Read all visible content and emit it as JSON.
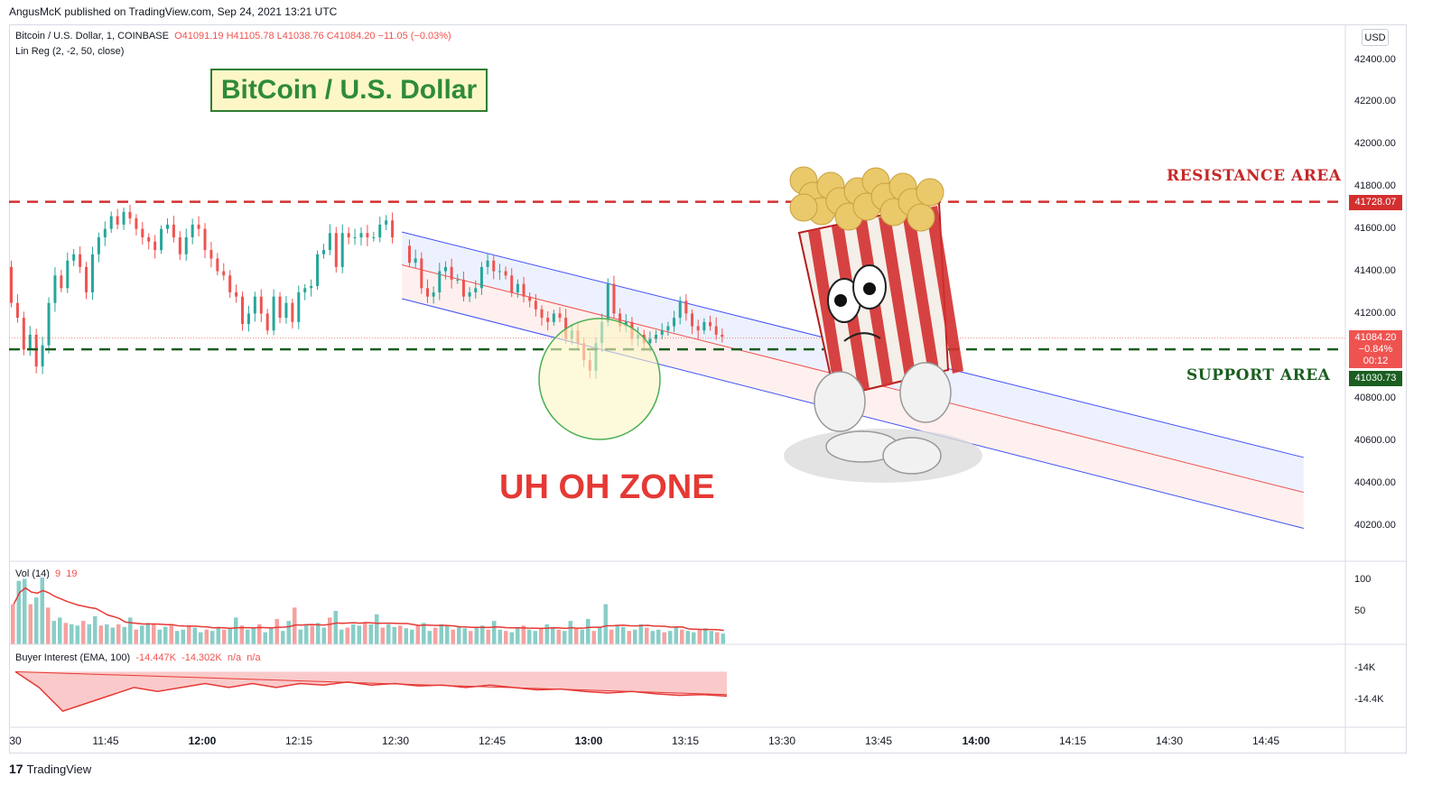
{
  "header": {
    "publish_info": "AngusMcK published on TradingView.com, Sep 24, 2021 13:21 UTC"
  },
  "symbol": {
    "name": "Bitcoin / U.S. Dollar, 1, COINBASE",
    "ohlc": "O41091.19  H41105.78  L41038.76  C41084.20  −11.05 (−0.03%)",
    "indicator": "Lin Reg (2, -2, 50, close)"
  },
  "currency": "USD",
  "annotations": {
    "title": "BitCoin / U.S. Dollar",
    "resistance": "RESISTANCE AREA",
    "support": "SUPPORT AREA",
    "zone": "UH OH ZONE"
  },
  "price_tags": {
    "resistance": "41728.07",
    "last_price": "41084.20",
    "change": "−0.84%",
    "countdown": "00:12",
    "support": "41030.73"
  },
  "volume_legend": {
    "name": "Vol (14)",
    "v1": "9",
    "v2": "19"
  },
  "buyer_interest_legend": {
    "name": "Buyer Interest (EMA, 100)",
    "v1": "-14.447K",
    "v2": "-14.302K",
    "v3": "n/a",
    "v4": "n/a"
  },
  "y_axis_main": [
    "42400.00",
    "42200.00",
    "42000.00",
    "41800.00",
    "41600.00",
    "41400.00",
    "41200.00",
    "40800.00",
    "40600.00",
    "40400.00",
    "40200.00"
  ],
  "y_axis_volume": [
    "100",
    "50"
  ],
  "y_axis_buyer": [
    "-14K",
    "-14.4K"
  ],
  "x_axis": [
    "30",
    "11:45",
    "12:00",
    "12:15",
    "12:30",
    "12:45",
    "13:00",
    "13:15",
    "13:30",
    "13:45",
    "14:00",
    "14:15",
    "14:30",
    "14:45"
  ],
  "footer": {
    "brand": "TradingView"
  },
  "colors": {
    "up": "#26a69a",
    "down": "#ef5350",
    "resistance": "#d32f2f",
    "support": "#1b5e20",
    "channel": "#3f51f5"
  },
  "chart_data": {
    "type": "candlestick",
    "interval": "1",
    "ylim": [
      40100,
      42500
    ],
    "resistance_level": 41728.07,
    "support_level": 41030.73,
    "last_price": 41084.2,
    "regression_channel": {
      "start_time": "12:31",
      "end_time": "14:51",
      "upper_start": 41585,
      "upper_end": 40520,
      "center_start": 41430,
      "center_end": 40355,
      "lower_start": 41270,
      "lower_end": 40185
    },
    "price_path": [
      [
        41420,
        41250,
        41180,
        41030,
        41100,
        40950,
        41050,
        41250,
        41380,
        41320,
        41450,
        41480,
        41420,
        41300,
        41480,
        41560,
        41600,
        41660,
        41620,
        41680,
        41650,
        41600,
        41560,
        41540,
        41500,
        41600,
        41620,
        41560,
        41480,
        41560,
        41620,
        41600,
        41500,
        41460,
        41400,
        41380,
        41300,
        41280,
        41150,
        41200,
        41280,
        41200,
        41120,
        41280,
        41180,
        41250,
        41160,
        41300,
        41320,
        41330,
        41480,
        41500,
        41580,
        41420,
        41580,
        41560,
        41560,
        41580,
        41560,
        41560,
        41620,
        41640,
        41560
      ],
      [
        41520,
        41440,
        41460,
        41320,
        41280,
        41300,
        41400,
        41420,
        41360,
        41360,
        41280,
        41300,
        41320,
        41420,
        41450,
        41400,
        41400,
        41380,
        41300,
        41340,
        41280,
        41260,
        41220,
        41180,
        41160,
        41200,
        41180,
        41080,
        41120,
        41060,
        40980,
        40930,
        41060,
        41160,
        41340,
        41200,
        41140,
        41160,
        41080,
        41100,
        41060,
        41080,
        41100,
        41120,
        41140,
        41180,
        41260,
        41200,
        41140,
        41120,
        41160,
        41140,
        41100,
        41090
      ]
    ],
    "volume": [
      60,
      95,
      98,
      60,
      70,
      100,
      55,
      35,
      40,
      32,
      30,
      28,
      35,
      30,
      42,
      28,
      30,
      25,
      30,
      26,
      40,
      22,
      28,
      32,
      30,
      22,
      26,
      30,
      20,
      22,
      28,
      25,
      18,
      22,
      20,
      26,
      22,
      24,
      40,
      28,
      22,
      25,
      30,
      18,
      24,
      38,
      20,
      35,
      55,
      22,
      30,
      28,
      32,
      25,
      40,
      50,
      22,
      25,
      30,
      28,
      32,
      30,
      45,
      25,
      30,
      26,
      28,
      24,
      22,
      28,
      32,
      20,
      25,
      30,
      28,
      22,
      26,
      24,
      20,
      25,
      28,
      22,
      35,
      22,
      20,
      18,
      25,
      28,
      22,
      20,
      24,
      30,
      26,
      22,
      20,
      35,
      25,
      22,
      38,
      20,
      25,
      60,
      22,
      28,
      26,
      20,
      22,
      30,
      25,
      20,
      22,
      18,
      20,
      26,
      22,
      20,
      18,
      22,
      24,
      20,
      18,
      16
    ],
    "buyer_interest": [
      -14.05,
      -14.25,
      -14.55,
      -14.45,
      -14.35,
      -14.25,
      -14.3,
      -14.25,
      -14.2,
      -14.25,
      -14.2,
      -14.25,
      -14.2,
      -14.22,
      -14.18,
      -14.22,
      -14.2,
      -14.23,
      -14.22,
      -14.25,
      -14.22,
      -14.25,
      -14.28,
      -14.27,
      -14.3,
      -14.32,
      -14.3,
      -14.33,
      -14.35,
      -14.34,
      -14.36
    ]
  }
}
